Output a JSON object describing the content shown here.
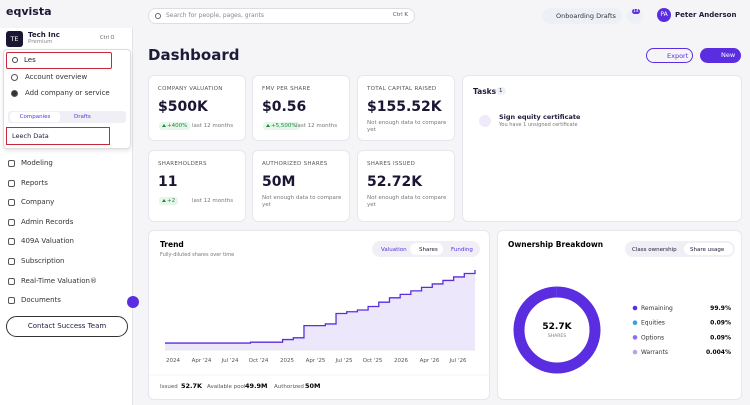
{
  "header": {
    "logo": "eqvista",
    "search_placeholder": "Search for people, pages, grants",
    "search_shortcut": "Ctrl K",
    "onboarding": "Onboarding Drafts",
    "notifications": "14",
    "user_initials": "PA",
    "user_name": "Peter Anderson"
  },
  "sidebar": {
    "company_initials": "TE",
    "company_name": "Tech Inc",
    "plan": "Premium",
    "company_shortcut": "Ctrl O",
    "search_value": "Les",
    "dropdown": [
      "Account overview",
      "Add company or service"
    ],
    "tabs": [
      "Companies",
      "Drafts"
    ],
    "result": "Leech Data",
    "nav": [
      "Modeling",
      "Reports",
      "Company",
      "Admin Records",
      "409A Valuation",
      "Subscription",
      "Real-Time Valuation®",
      "Documents"
    ],
    "contact": "Contact Success Team"
  },
  "main": {
    "title": "Dashboard",
    "export": "Export",
    "new": "New",
    "cards": [
      {
        "label": "COMPANY VALUATION",
        "value": "$500K",
        "change": "+400%",
        "period": "last 12 months"
      },
      {
        "label": "FMV PER SHARE",
        "value": "$0.56",
        "change": "+5,500%",
        "period": "last 12 months"
      },
      {
        "label": "TOTAL CAPITAL RAISED",
        "value": "$155.52K",
        "note": "Not enough data to compare yet"
      },
      {
        "label": "SHAREHOLDERS",
        "value": "11",
        "change": "+2",
        "period": "last 12 months"
      },
      {
        "label": "AUTHORIZED SHARES",
        "value": "50M",
        "note": "Not enough data to compare yet"
      },
      {
        "label": "SHARES ISSUED",
        "value": "52.72K",
        "note": "Not enough data to compare yet"
      }
    ],
    "tasks": {
      "title": "Tasks",
      "count": "1",
      "item_title": "Sign equity certificate",
      "item_sub": "You have 1 unsigned certificate"
    },
    "trend": {
      "title": "Trend",
      "subtitle": "Fully-diluted shares over time",
      "tabs": [
        "Valuation",
        "Shares",
        "Funding"
      ],
      "x_labels": [
        "2024",
        "Apr '24",
        "Jul '24",
        "Oct '24",
        "2025",
        "Apr '25",
        "Jul '25",
        "Oct '25",
        "2026",
        "Apr '26",
        "Jul '26"
      ],
      "values": [
        8,
        8,
        8,
        8,
        8,
        8,
        8,
        8,
        9,
        9,
        9,
        12,
        14,
        28,
        28,
        30,
        42,
        44,
        46,
        50,
        55,
        60,
        64,
        68,
        72,
        76,
        80,
        84,
        88,
        92
      ],
      "footer": [
        {
          "label": "Issued",
          "value": "52.7K"
        },
        {
          "label": "Available pool",
          "value": "49.9M"
        },
        {
          "label": "Authorized",
          "value": "50M"
        }
      ]
    },
    "ownership": {
      "title": "Ownership Breakdown",
      "tabs": [
        "Class ownership",
        "Share usage"
      ],
      "center_value": "52.7K",
      "center_label": "SHARES",
      "legend": [
        {
          "name": "Remaining",
          "value": 99.9,
          "value_label": "99.9%",
          "color": "#5a2ee0"
        },
        {
          "name": "Equities",
          "value": 0.09,
          "value_label": "0.09%",
          "color": "#35a3e0"
        },
        {
          "name": "Options",
          "value": 0.09,
          "value_label": "0.09%",
          "color": "#8f6cf0"
        },
        {
          "name": "Warrants",
          "value": 0.004,
          "value_label": "0.004%",
          "color": "#b9a2ea"
        }
      ]
    }
  }
}
